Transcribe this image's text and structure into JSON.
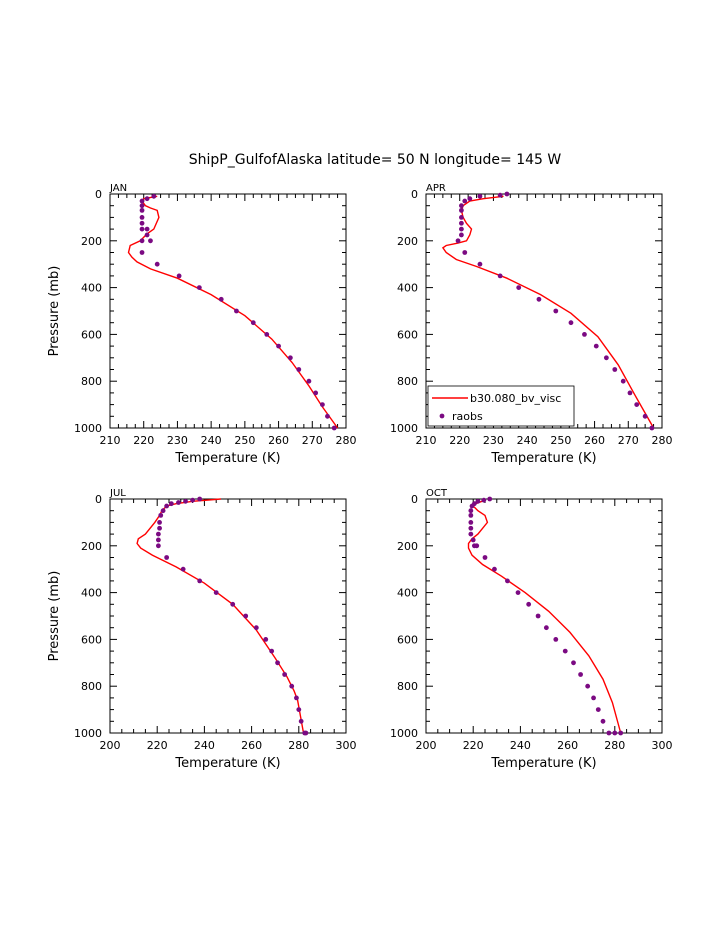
{
  "figure": {
    "title": "ShipP_GulfofAlaska  latitude= 50 N longitude= 145 W"
  },
  "legend": {
    "model_label": "b30.080_bv_visc",
    "obs_label": "raobs",
    "model_color": "#ff0000",
    "obs_color": "#7b0a82"
  },
  "chart_data": [
    {
      "type": "line",
      "panel": "JAN",
      "xlabel": "Temperature (K)",
      "ylabel": "Pressure (mb)",
      "xlim": [
        210,
        280
      ],
      "ylim": [
        1000,
        0
      ],
      "xticks": [
        "210",
        "220",
        "230",
        "240",
        "250",
        "260",
        "270",
        "280"
      ],
      "yticks": [
        "0",
        "200",
        "400",
        "600",
        "800",
        "1000"
      ],
      "legend": false,
      "series": [
        {
          "name": "b30.080_bv_visc",
          "x": [
            224,
            220,
            219.5,
            220.5,
            222,
            224,
            224.5,
            223,
            221,
            219,
            216,
            215.5,
            216.5,
            218,
            222,
            230,
            240,
            250,
            258,
            264,
            269,
            273,
            277.5
          ],
          "y": [
            10,
            20,
            30,
            50,
            60,
            70,
            100,
            150,
            170,
            200,
            220,
            250,
            270,
            290,
            320,
            360,
            430,
            520,
            620,
            720,
            820,
            910,
            1000
          ]
        },
        {
          "name": "raobs",
          "x": [
            223,
            221,
            219.5,
            219.5,
            219.5,
            219.5,
            219.5,
            219.5,
            221,
            222,
            221,
            219.5,
            219.5,
            224,
            230.5,
            236.5,
            243,
            247.5,
            252.5,
            256.5,
            260,
            263.5,
            266,
            269,
            271,
            273,
            274.5,
            276.5
          ],
          "y": [
            10,
            20,
            30,
            50,
            70,
            100,
            125,
            150,
            175,
            200,
            150,
            200,
            250,
            300,
            350,
            400,
            450,
            500,
            550,
            600,
            650,
            700,
            750,
            800,
            850,
            900,
            950,
            1000
          ]
        }
      ]
    },
    {
      "type": "line",
      "panel": "APR",
      "xlabel": "Temperature (K)",
      "ylabel": "",
      "xlim": [
        210,
        280
      ],
      "ylim": [
        1000,
        0
      ],
      "xticks": [
        "210",
        "220",
        "230",
        "240",
        "250",
        "260",
        "270",
        "280"
      ],
      "yticks": [
        "0",
        "200",
        "400",
        "600",
        "800",
        "1000"
      ],
      "legend": true,
      "legend_position": "bottom-left",
      "series": [
        {
          "name": "b30.080_bv_visc",
          "x": [
            233,
            227,
            223,
            221,
            220.5,
            221,
            222,
            223.5,
            223,
            222,
            219.5,
            216,
            215,
            216,
            219,
            225,
            234,
            244,
            253,
            261,
            267,
            272,
            277.5
          ],
          "y": [
            10,
            20,
            30,
            50,
            70,
            100,
            125,
            150,
            175,
            200,
            210,
            220,
            230,
            250,
            280,
            310,
            360,
            430,
            510,
            610,
            730,
            860,
            1000
          ]
        },
        {
          "name": "raobs",
          "x": [
            234,
            232,
            226,
            223,
            221.5,
            220.5,
            220.5,
            220.5,
            220.5,
            220.5,
            220.5,
            219.5,
            221.5,
            226,
            232,
            237.5,
            243.5,
            248.5,
            253,
            257,
            260.5,
            263.5,
            266,
            268.5,
            270.5,
            272.5,
            275,
            277
          ],
          "y": [
            0,
            5,
            10,
            20,
            30,
            50,
            70,
            100,
            125,
            150,
            175,
            200,
            250,
            300,
            350,
            400,
            450,
            500,
            550,
            600,
            650,
            700,
            750,
            800,
            850,
            900,
            950,
            1000
          ]
        }
      ]
    },
    {
      "type": "line",
      "panel": "JUL",
      "xlabel": "Temperature (K)",
      "ylabel": "Pressure (mb)",
      "xlim": [
        200,
        300
      ],
      "ylim": [
        1000,
        0
      ],
      "xticks": [
        "200",
        "220",
        "240",
        "260",
        "280",
        "300"
      ],
      "yticks": [
        "0",
        "200",
        "400",
        "600",
        "800",
        "1000"
      ],
      "legend": false,
      "series": [
        {
          "name": "b30.080_bv_visc",
          "x": [
            247,
            235,
            228,
            224,
            222,
            221,
            219,
            215,
            212,
            211.5,
            213,
            218,
            228,
            240,
            252,
            262,
            270,
            275,
            278,
            279.5,
            282
          ],
          "y": [
            0,
            10,
            20,
            30,
            50,
            70,
            100,
            150,
            170,
            190,
            210,
            240,
            290,
            360,
            450,
            560,
            680,
            760,
            820,
            860,
            1000
          ]
        },
        {
          "name": "raobs",
          "x": [
            238,
            235,
            232,
            229,
            226,
            224,
            222.5,
            221.5,
            221,
            221,
            220.5,
            220.5,
            220.5,
            224,
            231,
            238,
            245,
            252,
            257.5,
            262,
            266,
            268.5,
            271,
            274,
            277,
            279,
            280,
            281,
            282.5,
            283
          ],
          "y": [
            0,
            5,
            10,
            15,
            20,
            30,
            50,
            70,
            100,
            125,
            150,
            175,
            200,
            250,
            300,
            350,
            400,
            450,
            500,
            550,
            600,
            650,
            700,
            750,
            800,
            850,
            900,
            950,
            1000,
            1000
          ]
        }
      ]
    },
    {
      "type": "line",
      "panel": "OCT",
      "xlabel": "Temperature (K)",
      "ylabel": "",
      "xlim": [
        200,
        300
      ],
      "ylim": [
        1000,
        0
      ],
      "xticks": [
        "200",
        "220",
        "240",
        "260",
        "280",
        "300"
      ],
      "yticks": [
        "0",
        "200",
        "400",
        "600",
        "800",
        "1000"
      ],
      "legend": false,
      "series": [
        {
          "name": "b30.080_bv_visc",
          "x": [
            225,
            221,
            220,
            222,
            225,
            226,
            224,
            222,
            219.5,
            218,
            218,
            219.5,
            224,
            232,
            242,
            252,
            261,
            269,
            275,
            279,
            282.5
          ],
          "y": [
            5,
            20,
            30,
            50,
            70,
            100,
            125,
            150,
            170,
            190,
            210,
            240,
            280,
            330,
            400,
            480,
            570,
            670,
            770,
            870,
            1000
          ]
        },
        {
          "name": "raobs",
          "x": [
            227,
            224.5,
            222,
            220.5,
            219.5,
            219,
            219,
            219,
            219,
            219,
            220,
            220.5,
            221.5,
            225,
            229,
            234.5,
            239,
            243.5,
            247.5,
            251,
            255,
            259,
            262.5,
            265.5,
            268.5,
            271,
            273,
            275,
            277.5,
            280,
            282.5
          ],
          "y": [
            0,
            5,
            10,
            20,
            30,
            50,
            70,
            100,
            125,
            150,
            175,
            200,
            200,
            250,
            300,
            350,
            400,
            450,
            500,
            550,
            600,
            650,
            700,
            750,
            800,
            850,
            900,
            950,
            1000,
            1000,
            1000
          ]
        }
      ]
    }
  ]
}
